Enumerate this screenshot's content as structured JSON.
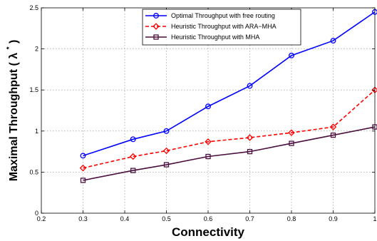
{
  "chart_data": {
    "type": "line",
    "xlabel": "Connectivity",
    "ylabel": "Maximal Throughput",
    "ylabel_symbol": "λ",
    "ylabel_superscript": "*",
    "xlim": [
      0.2,
      1.0
    ],
    "ylim": [
      0,
      2.5
    ],
    "xticks": [
      "0.2",
      "0.3",
      "0.4",
      "0.5",
      "0.6",
      "0.7",
      "0.8",
      "0.9",
      "1"
    ],
    "yticks": [
      "0",
      "0.5",
      "1",
      "1.5",
      "2",
      "2.5"
    ],
    "grid": true,
    "legend_position": "top-right",
    "series": [
      {
        "name": "Optimal Throughput with free routing",
        "color": "#0000ff",
        "line_style": "solid",
        "marker": "circle",
        "x": [
          0.3,
          0.42,
          0.5,
          0.6,
          0.7,
          0.8,
          0.9,
          1.0
        ],
        "values": [
          0.7,
          0.9,
          1.0,
          1.3,
          1.55,
          1.92,
          2.1,
          2.45
        ]
      },
      {
        "name": "Heuristic Throughput with ARA−MHA",
        "color": "#ff0000",
        "line_style": "dashed",
        "marker": "diamond",
        "x": [
          0.3,
          0.42,
          0.5,
          0.6,
          0.7,
          0.8,
          0.9,
          1.0
        ],
        "values": [
          0.55,
          0.69,
          0.76,
          0.87,
          0.92,
          0.98,
          1.05,
          1.5
        ]
      },
      {
        "name": "Heuristic Throughput with MHA",
        "color": "#4b0f3f",
        "line_style": "solid",
        "marker": "square",
        "x": [
          0.3,
          0.42,
          0.5,
          0.6,
          0.7,
          0.8,
          0.9,
          1.0
        ],
        "values": [
          0.4,
          0.52,
          0.59,
          0.69,
          0.75,
          0.85,
          0.95,
          1.05
        ]
      }
    ]
  }
}
